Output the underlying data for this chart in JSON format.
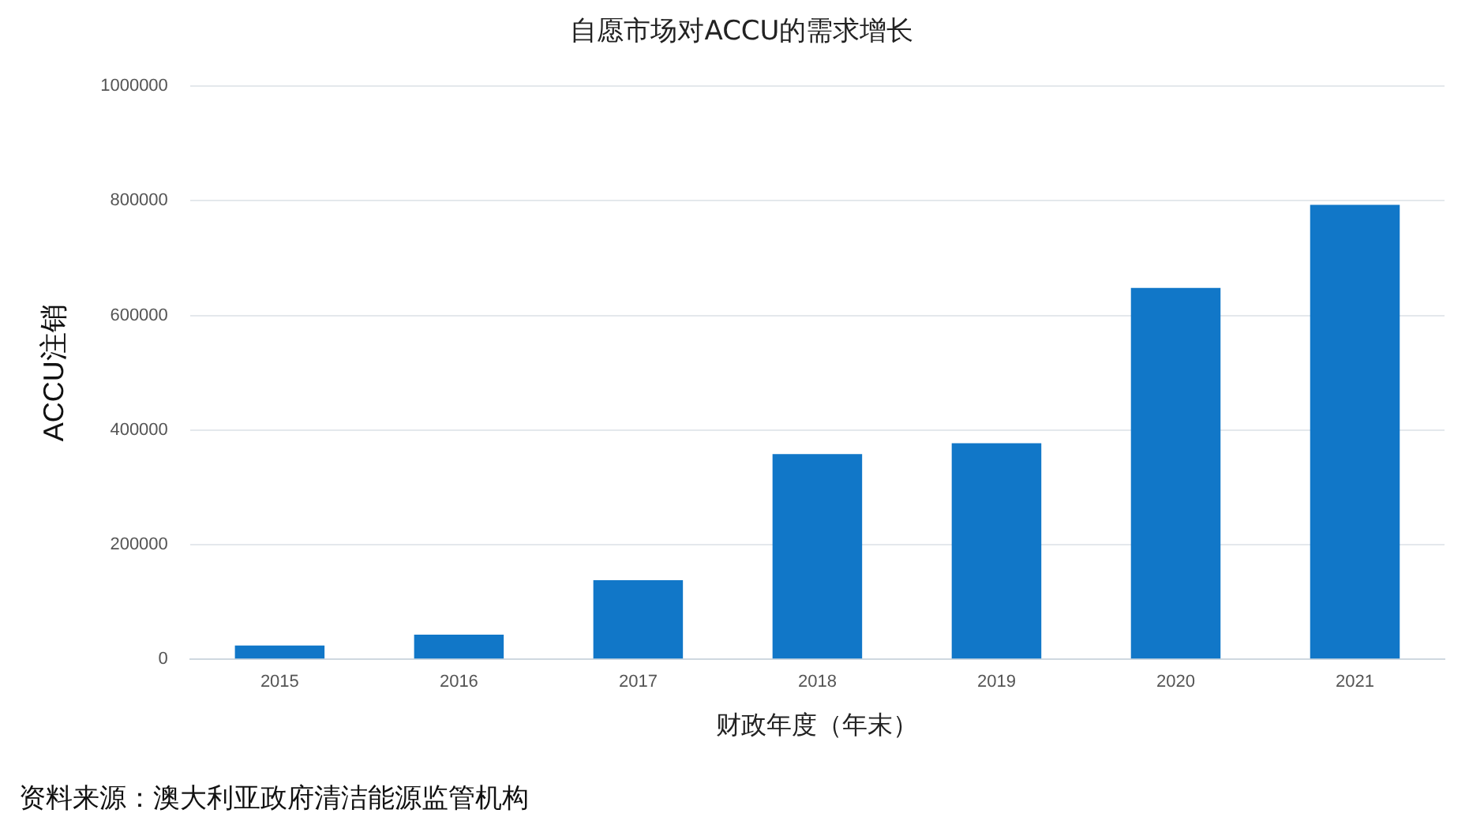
{
  "chart_data": {
    "type": "bar",
    "title": "自愿市场对ACCU的需求增长",
    "xlabel": "财政年度（年末）",
    "ylabel": "ACCU注销",
    "categories": [
      "2015",
      "2016",
      "2017",
      "2018",
      "2019",
      "2020",
      "2021"
    ],
    "values": [
      24000,
      43000,
      138000,
      358000,
      377000,
      648000,
      793000
    ],
    "color": "#1177c8",
    "ylim": [
      0,
      1000000
    ],
    "yticks": [
      0,
      200000,
      400000,
      600000,
      800000,
      1000000
    ],
    "grid": "y",
    "annotations": [
      "资料来源：澳大利亚政府清洁能源监管机构"
    ]
  }
}
